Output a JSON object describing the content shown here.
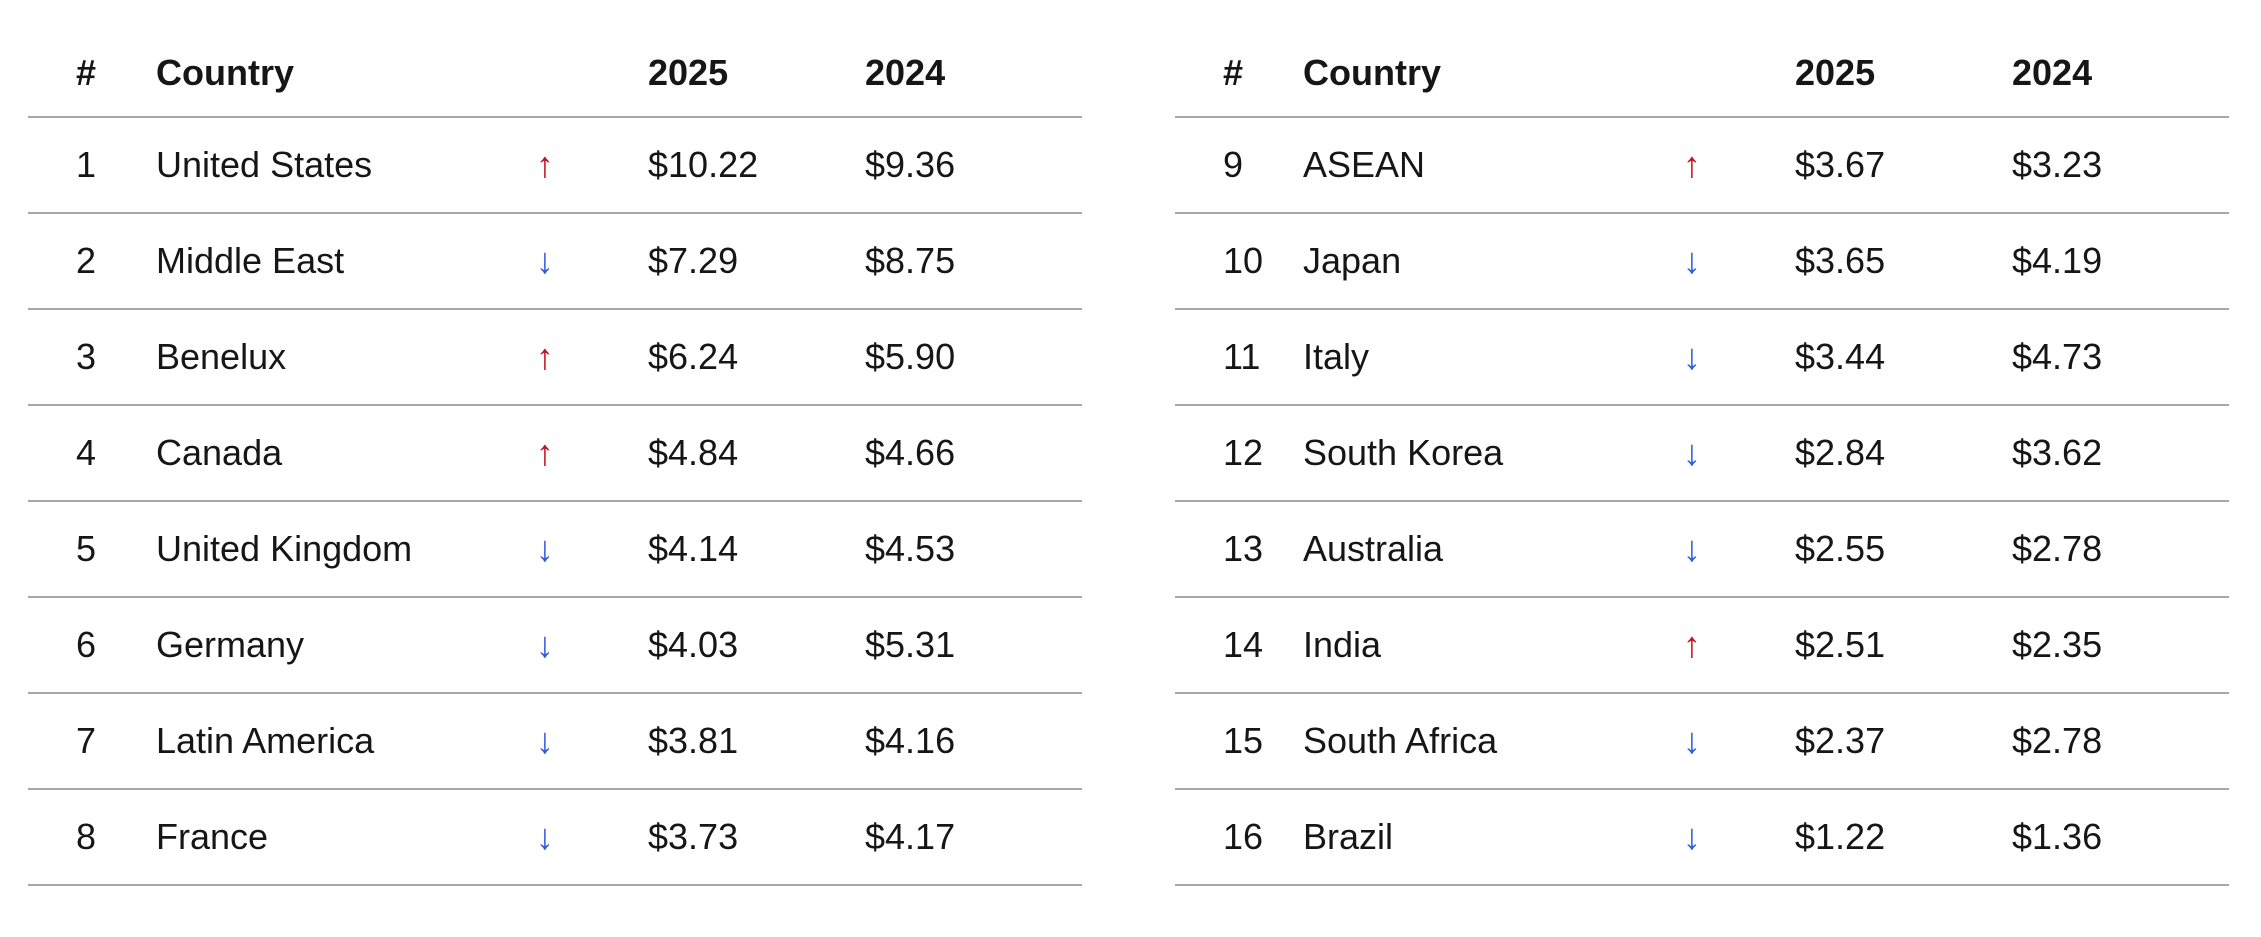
{
  "chart_data": {
    "type": "table",
    "columns": {
      "rank": "#",
      "country": "Country",
      "y2025": "2025",
      "y2024": "2024"
    },
    "colors": {
      "up": "#c1121f",
      "down": "#2d5be3",
      "rule": "#a8a8a8"
    },
    "tables": [
      {
        "rows": [
          {
            "rank": "1",
            "country": "United States",
            "trend": "up",
            "trend_symbol": "↑",
            "y2025": "$10.22",
            "y2024": "$9.36",
            "value_2025": 10.22,
            "value_2024": 9.36
          },
          {
            "rank": "2",
            "country": "Middle East",
            "trend": "down",
            "trend_symbol": "↓",
            "y2025": "$7.29",
            "y2024": "$8.75",
            "value_2025": 7.29,
            "value_2024": 8.75
          },
          {
            "rank": "3",
            "country": "Benelux",
            "trend": "up",
            "trend_symbol": "↑",
            "y2025": "$6.24",
            "y2024": "$5.90",
            "value_2025": 6.24,
            "value_2024": 5.9
          },
          {
            "rank": "4",
            "country": "Canada",
            "trend": "up",
            "trend_symbol": "↑",
            "y2025": "$4.84",
            "y2024": "$4.66",
            "value_2025": 4.84,
            "value_2024": 4.66
          },
          {
            "rank": "5",
            "country": "United Kingdom",
            "trend": "down",
            "trend_symbol": "↓",
            "y2025": "$4.14",
            "y2024": "$4.53",
            "value_2025": 4.14,
            "value_2024": 4.53
          },
          {
            "rank": "6",
            "country": "Germany",
            "trend": "down",
            "trend_symbol": "↓",
            "y2025": "$4.03",
            "y2024": "$5.31",
            "value_2025": 4.03,
            "value_2024": 5.31
          },
          {
            "rank": "7",
            "country": "Latin America",
            "trend": "down",
            "trend_symbol": "↓",
            "y2025": "$3.81",
            "y2024": "$4.16",
            "value_2025": 3.81,
            "value_2024": 4.16
          },
          {
            "rank": "8",
            "country": "France",
            "trend": "down",
            "trend_symbol": "↓",
            "y2025": "$3.73",
            "y2024": "$4.17",
            "value_2025": 3.73,
            "value_2024": 4.17
          }
        ]
      },
      {
        "rows": [
          {
            "rank": "9",
            "country": "ASEAN",
            "trend": "up",
            "trend_symbol": "↑",
            "y2025": "$3.67",
            "y2024": "$3.23",
            "value_2025": 3.67,
            "value_2024": 3.23
          },
          {
            "rank": "10",
            "country": "Japan",
            "trend": "down",
            "trend_symbol": "↓",
            "y2025": "$3.65",
            "y2024": "$4.19",
            "value_2025": 3.65,
            "value_2024": 4.19
          },
          {
            "rank": "11",
            "country": "Italy",
            "trend": "down",
            "trend_symbol": "↓",
            "y2025": "$3.44",
            "y2024": "$4.73",
            "value_2025": 3.44,
            "value_2024": 4.73
          },
          {
            "rank": "12",
            "country": "South Korea",
            "trend": "down",
            "trend_symbol": "↓",
            "y2025": "$2.84",
            "y2024": "$3.62",
            "value_2025": 2.84,
            "value_2024": 3.62
          },
          {
            "rank": "13",
            "country": "Australia",
            "trend": "down",
            "trend_symbol": "↓",
            "y2025": "$2.55",
            "y2024": "$2.78",
            "value_2025": 2.55,
            "value_2024": 2.78
          },
          {
            "rank": "14",
            "country": "India",
            "trend": "up",
            "trend_symbol": "↑",
            "y2025": "$2.51",
            "y2024": "$2.35",
            "value_2025": 2.51,
            "value_2024": 2.35
          },
          {
            "rank": "15",
            "country": "South Africa",
            "trend": "down",
            "trend_symbol": "↓",
            "y2025": "$2.37",
            "y2024": "$2.78",
            "value_2025": 2.37,
            "value_2024": 2.78
          },
          {
            "rank": "16",
            "country": "Brazil",
            "trend": "down",
            "trend_symbol": "↓",
            "y2025": "$1.22",
            "y2024": "$1.36",
            "value_2025": 1.22,
            "value_2024": 1.36
          }
        ]
      }
    ]
  }
}
